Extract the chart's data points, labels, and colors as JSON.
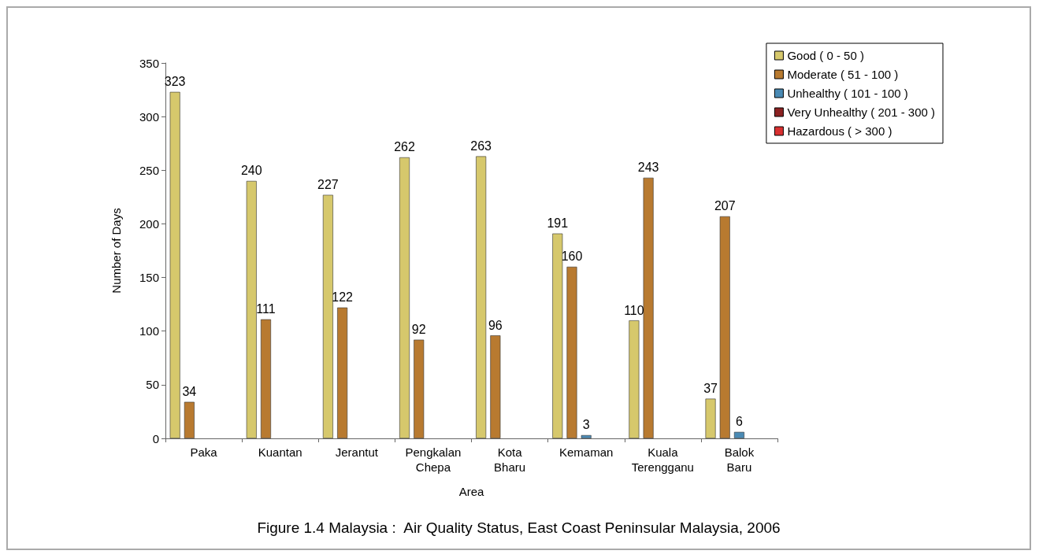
{
  "chart_data": {
    "type": "bar",
    "title": "Figure 1.4 Malaysia :  Air Quality Status, East Coast Peninsular Malaysia, 2006",
    "xlabel": "Area",
    "ylabel": "Number of Days",
    "categories": [
      "Paka",
      "Kuantan",
      "Jerantut",
      "Pengkalan Chepa",
      "Kota Bharu",
      "Kemaman",
      "Kuala Terengganu",
      "Balok Baru"
    ],
    "series": [
      {
        "name": "Good ( 0 - 50 )",
        "color": "#d6c86c",
        "values": [
          323,
          240,
          227,
          262,
          263,
          191,
          110,
          37
        ]
      },
      {
        "name": "Moderate ( 51 - 100 )",
        "color": "#b87a30",
        "values": [
          34,
          111,
          122,
          92,
          96,
          160,
          243,
          207
        ]
      },
      {
        "name": "Unhealthy ( 101 - 100 )",
        "color": "#4a8ab4",
        "values": [
          null,
          null,
          null,
          null,
          null,
          3,
          null,
          6
        ]
      },
      {
        "name": "Very Unhealthy ( 201 - 300 )",
        "color": "#8b2222",
        "values": [
          null,
          null,
          null,
          null,
          null,
          null,
          null,
          null
        ]
      },
      {
        "name": "Hazardous ( > 300 )",
        "color": "#d83030",
        "values": [
          null,
          null,
          null,
          null,
          null,
          null,
          null,
          null
        ]
      }
    ],
    "ylim": [
      0,
      350
    ],
    "yticks": [
      0,
      50,
      100,
      150,
      200,
      250,
      300,
      350
    ],
    "grid": false,
    "legend": "top right",
    "data_labels": true
  }
}
